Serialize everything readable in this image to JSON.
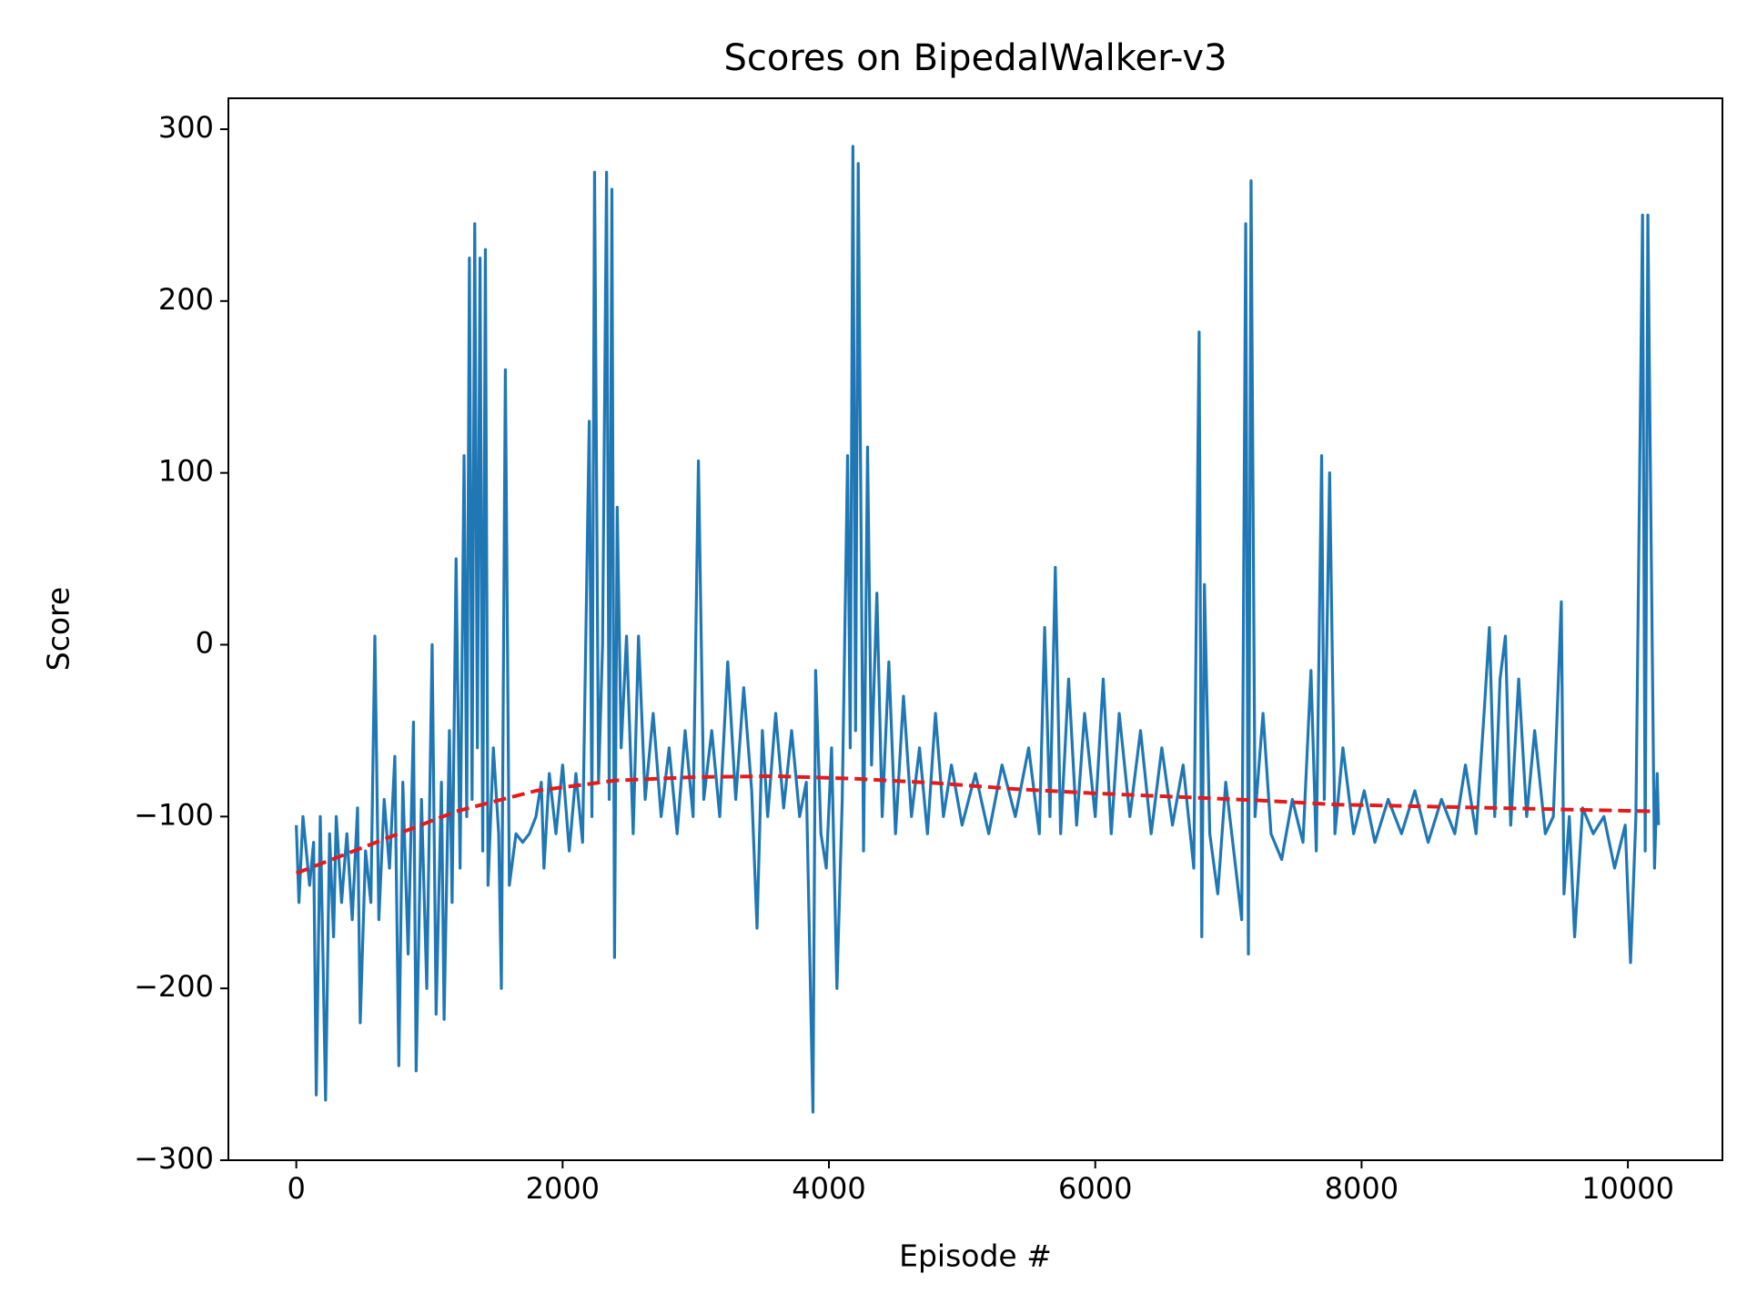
{
  "chart_data": {
    "type": "line",
    "title": "Scores on BipedalWalker-v3",
    "x_label": "Episode #",
    "y_label": "Score",
    "xlim": [
      -510,
      10710
    ],
    "ylim": [
      -300,
      318
    ],
    "xticks": [
      0,
      2000,
      4000,
      6000,
      8000,
      10000
    ],
    "yticks": [
      {
        "value": -300,
        "label": "−300"
      },
      {
        "value": -200,
        "label": "−200"
      },
      {
        "value": -100,
        "label": "−100"
      },
      0,
      100,
      200,
      300
    ],
    "grid": false,
    "series": [
      {
        "color": "#1f77b4",
        "style": "solid",
        "x": [
          0,
          20,
          50,
          100,
          130,
          150,
          180,
          200,
          220,
          250,
          280,
          300,
          340,
          380,
          420,
          460,
          480,
          520,
          560,
          590,
          620,
          660,
          700,
          740,
          770,
          800,
          840,
          880,
          900,
          940,
          980,
          1020,
          1050,
          1090,
          1110,
          1150,
          1170,
          1200,
          1230,
          1260,
          1280,
          1300,
          1320,
          1340,
          1360,
          1380,
          1400,
          1420,
          1440,
          1480,
          1520,
          1540,
          1570,
          1600,
          1650,
          1700,
          1750,
          1800,
          1840,
          1860,
          1900,
          1950,
          2000,
          2050,
          2100,
          2150,
          2200,
          2220,
          2240,
          2270,
          2300,
          2330,
          2350,
          2370,
          2390,
          2410,
          2440,
          2480,
          2530,
          2570,
          2620,
          2680,
          2740,
          2800,
          2860,
          2920,
          2980,
          3020,
          3060,
          3120,
          3180,
          3240,
          3300,
          3360,
          3420,
          3460,
          3500,
          3540,
          3600,
          3660,
          3720,
          3780,
          3830,
          3880,
          3900,
          3940,
          3980,
          4020,
          4060,
          4100,
          4140,
          4160,
          4180,
          4200,
          4220,
          4260,
          4290,
          4320,
          4360,
          4400,
          4450,
          4500,
          4560,
          4620,
          4680,
          4740,
          4800,
          4860,
          4920,
          5000,
          5100,
          5200,
          5300,
          5400,
          5500,
          5580,
          5620,
          5660,
          5700,
          5740,
          5800,
          5860,
          5920,
          6000,
          6060,
          6120,
          6180,
          6260,
          6340,
          6420,
          6500,
          6580,
          6660,
          6740,
          6780,
          6800,
          6820,
          6860,
          6920,
          6980,
          7040,
          7100,
          7130,
          7150,
          7170,
          7200,
          7260,
          7320,
          7400,
          7480,
          7560,
          7620,
          7660,
          7700,
          7720,
          7760,
          7800,
          7860,
          7940,
          8020,
          8100,
          8200,
          8300,
          8400,
          8500,
          8600,
          8700,
          8780,
          8860,
          8920,
          8960,
          9000,
          9040,
          9080,
          9120,
          9180,
          9240,
          9300,
          9380,
          9440,
          9500,
          9520,
          9560,
          9600,
          9660,
          9740,
          9820,
          9900,
          9980,
          10020,
          10060,
          10110,
          10130,
          10150,
          10170,
          10200,
          10220,
          10230
        ],
        "values": [
          -105,
          -150,
          -100,
          -140,
          -115,
          -262,
          -100,
          -180,
          -265,
          -110,
          -170,
          -100,
          -150,
          -110,
          -160,
          -95,
          -220,
          -120,
          -150,
          5,
          -160,
          -90,
          -130,
          -65,
          -245,
          -80,
          -180,
          -45,
          -248,
          -90,
          -200,
          0,
          -215,
          -80,
          -218,
          -50,
          -150,
          50,
          -130,
          110,
          -100,
          225,
          -90,
          245,
          -60,
          225,
          -120,
          230,
          -140,
          -60,
          -110,
          -200,
          160,
          -140,
          -110,
          -115,
          -110,
          -100,
          -80,
          -130,
          -75,
          -110,
          -70,
          -120,
          -75,
          -115,
          130,
          -100,
          275,
          -80,
          0,
          275,
          -90,
          265,
          -182,
          80,
          -60,
          5,
          -110,
          5,
          -90,
          -40,
          -100,
          -60,
          -110,
          -50,
          -100,
          107,
          -90,
          -50,
          -100,
          -10,
          -90,
          -25,
          -85,
          -165,
          -50,
          -100,
          -40,
          -95,
          -50,
          -100,
          -80,
          -272,
          -15,
          -110,
          -130,
          -60,
          -200,
          -90,
          110,
          -60,
          290,
          -50,
          280,
          -120,
          115,
          -70,
          30,
          -100,
          -10,
          -110,
          -30,
          -100,
          -60,
          -110,
          -40,
          -100,
          -70,
          -105,
          -75,
          -110,
          -70,
          -100,
          -60,
          -110,
          10,
          -100,
          45,
          -110,
          -20,
          -105,
          -40,
          -100,
          -20,
          -110,
          -40,
          -100,
          -50,
          -110,
          -60,
          -105,
          -70,
          -130,
          182,
          -170,
          35,
          -110,
          -145,
          -80,
          -120,
          -160,
          245,
          -180,
          270,
          -100,
          -40,
          -110,
          -125,
          -90,
          -115,
          -15,
          -120,
          110,
          -90,
          100,
          -110,
          -60,
          -110,
          -85,
          -115,
          -90,
          -110,
          -85,
          -115,
          -90,
          -110,
          -70,
          -110,
          -40,
          10,
          -100,
          -20,
          5,
          -105,
          -20,
          -100,
          -50,
          -110,
          -100,
          25,
          -145,
          -100,
          -170,
          -95,
          -110,
          -100,
          -130,
          -105,
          -185,
          -100,
          250,
          -120,
          250,
          95,
          -130,
          -75,
          -105
        ]
      },
      {
        "color": "#e41a1c",
        "style": "dashed",
        "x": [
          0,
          600,
          1200,
          1800,
          2400,
          3000,
          3600,
          4200,
          4800,
          5400,
          6000,
          6600,
          7200,
          7800,
          8400,
          9000,
          9600,
          10200
        ],
        "values": [
          -133,
          -115,
          -97,
          -85,
          -79,
          -77,
          -76.5,
          -78,
          -80.5,
          -84,
          -86.5,
          -88.5,
          -90.5,
          -93,
          -94,
          -95,
          -96,
          -97
        ]
      }
    ]
  }
}
